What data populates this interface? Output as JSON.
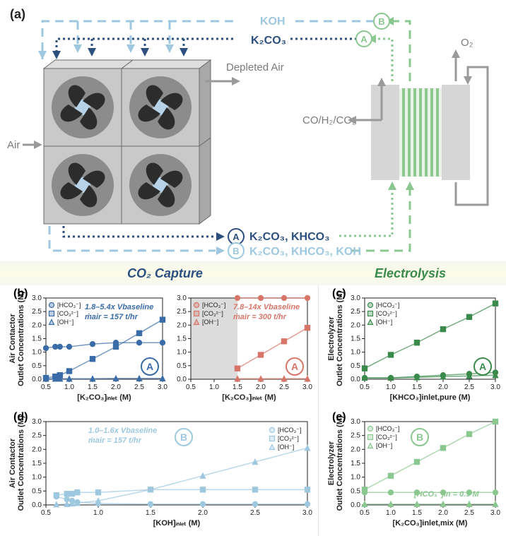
{
  "panel_a": {
    "label": "(a)",
    "air_in": "Air",
    "depleted_air": "Depleted Air",
    "products": "CO/H₂/CO₂",
    "o2": "O₂",
    "koh_top": "KOH",
    "k2co3_top": "K₂CO₃",
    "pathA_bottom": "K₂CO₃, KHCO₃",
    "pathB_bottom": "K₂CO₃, KHCO₃, KOH",
    "nodeA": "A",
    "nodeB": "B",
    "colors": {
      "lightblue": "#9ec8e0",
      "darkblue": "#2c4f80",
      "green": "#8bc891",
      "gray": "#9a9a9a",
      "fangray": "#b8b8b8",
      "fandark": "#4a4a4a"
    }
  },
  "section_titles": {
    "capture": "CO₂ Capture",
    "electrolysis": "Electrolysis",
    "capture_color": "#2c4f80",
    "electrolysis_color": "#3a8a4c"
  },
  "chart_b": {
    "label": "(b)",
    "ylabel": "Air Contactor\nOutlet Concentrations (M)",
    "xlabel": "[K₂CO₃]ᵢₙₗₑₜ (M)",
    "ylim": [
      0,
      3.0
    ],
    "ytick_step": 0.5,
    "xlim": [
      0.5,
      3.0
    ],
    "xtick_step": 0.5,
    "left": {
      "color": "#3a6ca8",
      "annot": "1.8–5.4x Vbaseline",
      "annot2": "ṁair = 157 t/hr",
      "series": {
        "HCO3": {
          "marker": "circle",
          "data": [
            [
              0.5,
              1.15
            ],
            [
              0.7,
              1.2
            ],
            [
              0.8,
              1.2
            ],
            [
              1.0,
              1.2
            ],
            [
              1.5,
              1.3
            ],
            [
              2.0,
              1.35
            ],
            [
              2.5,
              1.35
            ],
            [
              3.0,
              1.35
            ]
          ]
        },
        "CO3": {
          "marker": "square",
          "data": [
            [
              0.5,
              0.05
            ],
            [
              0.7,
              0.1
            ],
            [
              0.8,
              0.15
            ],
            [
              1.0,
              0.3
            ],
            [
              1.5,
              0.75
            ],
            [
              2.0,
              1.2
            ],
            [
              2.5,
              1.7
            ],
            [
              3.0,
              2.2
            ]
          ]
        },
        "OH": {
          "marker": "triangle",
          "data": [
            [
              0.5,
              0.02
            ],
            [
              0.7,
              0.02
            ],
            [
              0.8,
              0.02
            ],
            [
              1.0,
              0.02
            ],
            [
              1.5,
              0.02
            ],
            [
              2.0,
              0.03
            ],
            [
              2.5,
              0.03
            ],
            [
              3.0,
              0.03
            ]
          ]
        }
      },
      "node": "A"
    },
    "right": {
      "color": "#d8766a",
      "annot": "7.8–14x Vbaseline",
      "annot2": "ṁair = 300 t/hr",
      "shaded_x": [
        0.5,
        1.5
      ],
      "series": {
        "HCO3": {
          "marker": "circle",
          "data": [
            [
              1.5,
              3.0
            ],
            [
              2.0,
              3.0
            ],
            [
              2.5,
              3.0
            ],
            [
              3.0,
              3.0
            ]
          ]
        },
        "CO3": {
          "marker": "square",
          "data": [
            [
              1.5,
              0.4
            ],
            [
              2.0,
              0.9
            ],
            [
              2.5,
              1.4
            ],
            [
              3.0,
              1.9
            ]
          ]
        },
        "OH": {
          "marker": "triangle",
          "data": [
            [
              1.5,
              0.02
            ],
            [
              2.0,
              0.02
            ],
            [
              2.5,
              0.02
            ],
            [
              3.0,
              0.02
            ]
          ]
        }
      },
      "node": "A"
    }
  },
  "chart_c": {
    "label": "(c)",
    "ylabel": "Electrolyzer\nOutlet Concentrations (M)",
    "xlabel": "[KHCO₃]inlet,pure (M)",
    "color": "#3a8a4c",
    "ylim": [
      0,
      3.0
    ],
    "ytick_step": 0.5,
    "xlim": [
      0.5,
      3.0
    ],
    "xtick_step": 0.5,
    "series": {
      "HCO3": {
        "marker": "circle",
        "data": [
          [
            0.5,
            0.05
          ],
          [
            1.0,
            0.05
          ],
          [
            1.5,
            0.1
          ],
          [
            2.0,
            0.15
          ],
          [
            2.5,
            0.2
          ],
          [
            3.0,
            0.25
          ]
        ]
      },
      "CO3": {
        "marker": "square",
        "data": [
          [
            0.5,
            0.4
          ],
          [
            1.0,
            0.9
          ],
          [
            1.5,
            1.35
          ],
          [
            2.0,
            1.85
          ],
          [
            2.5,
            2.3
          ],
          [
            3.0,
            2.8
          ]
        ]
      },
      "OH": {
        "marker": "triangle",
        "data": [
          [
            0.5,
            0.05
          ],
          [
            1.0,
            0.05
          ],
          [
            1.5,
            0.07
          ],
          [
            2.0,
            0.1
          ],
          [
            2.5,
            0.12
          ],
          [
            3.0,
            0.15
          ]
        ]
      }
    },
    "node": "A"
  },
  "chart_d": {
    "label": "(d)",
    "ylabel": "Air Contactor\nOutlet Concentrations (M)",
    "xlabel": "[KOH]ᵢₙₗₑₜ (M)",
    "color": "#9ec8e0",
    "annot": "1.0–1.6x Vbaseline",
    "annot2": "ṁair = 157 t/hr",
    "ylim": [
      0,
      3.0
    ],
    "ytick_step": 0.5,
    "xlim": [
      0.5,
      3.0
    ],
    "xtick_step": 0.5,
    "series": {
      "HCO3": {
        "marker": "circle",
        "data": [
          [
            0.6,
            0.3
          ],
          [
            0.7,
            0.2
          ],
          [
            0.75,
            0.15
          ],
          [
            0.8,
            0.1
          ],
          [
            1.0,
            0.05
          ],
          [
            1.5,
            0.03
          ],
          [
            2.0,
            0.03
          ],
          [
            2.5,
            0.03
          ],
          [
            3.0,
            0.03
          ]
        ]
      },
      "CO3": {
        "marker": "square",
        "data": [
          [
            0.6,
            0.35
          ],
          [
            0.7,
            0.4
          ],
          [
            0.75,
            0.4
          ],
          [
            0.8,
            0.45
          ],
          [
            1.0,
            0.45
          ],
          [
            1.5,
            0.55
          ],
          [
            2.0,
            0.55
          ],
          [
            2.5,
            0.55
          ],
          [
            3.0,
            0.55
          ]
        ]
      },
      "OH": {
        "marker": "triangle",
        "data": [
          [
            0.6,
            0.02
          ],
          [
            0.7,
            0.03
          ],
          [
            0.75,
            0.05
          ],
          [
            0.8,
            0.07
          ],
          [
            1.0,
            0.15
          ],
          [
            1.5,
            0.55
          ],
          [
            2.0,
            1.05
          ],
          [
            2.5,
            1.55
          ],
          [
            3.0,
            2.05
          ]
        ]
      }
    },
    "node": "B"
  },
  "chart_e": {
    "label": "(e)",
    "ylabel": "Electrolyzer\nOutlet Concentrations (M)",
    "xlabel": "[K₂CO₃]inlet,mix (M)",
    "color": "#8bc891",
    "annot": "[HCO₃⁻]in = 0.5 M",
    "ylim": [
      0,
      3.0
    ],
    "ytick_step": 0.5,
    "xlim": [
      0.5,
      3.0
    ],
    "xtick_step": 0.5,
    "series": {
      "HCO3": {
        "marker": "circle",
        "data": [
          [
            0.5,
            0.45
          ],
          [
            1.0,
            0.45
          ],
          [
            1.5,
            0.45
          ],
          [
            2.0,
            0.45
          ],
          [
            2.5,
            0.45
          ],
          [
            3.0,
            0.45
          ]
        ]
      },
      "CO3": {
        "marker": "square",
        "data": [
          [
            0.5,
            0.55
          ],
          [
            1.0,
            1.05
          ],
          [
            1.5,
            1.55
          ],
          [
            2.0,
            2.05
          ],
          [
            2.5,
            2.55
          ],
          [
            3.0,
            3.05
          ]
        ]
      },
      "OH": {
        "marker": "triangle",
        "data": [
          [
            0.5,
            0.03
          ],
          [
            1.0,
            0.03
          ],
          [
            1.5,
            0.03
          ],
          [
            2.0,
            0.03
          ],
          [
            2.5,
            0.03
          ],
          [
            3.0,
            0.03
          ]
        ]
      }
    },
    "node": "B"
  },
  "legend_labels": {
    "HCO3": "[HCO₃⁻]",
    "CO3": "[CO₃²⁻]",
    "OH": "[OH⁻]"
  }
}
